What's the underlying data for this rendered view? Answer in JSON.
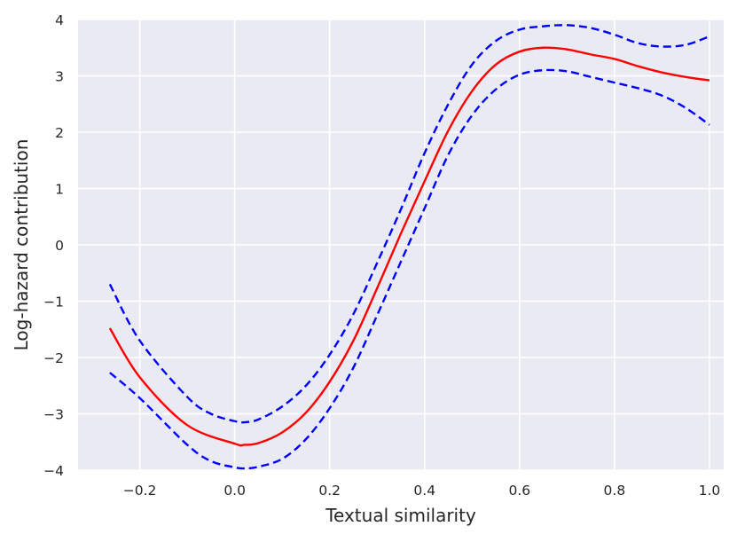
{
  "chart_data": {
    "type": "line",
    "xlabel": "Textual similarity",
    "ylabel": "Log-hazard contribution",
    "xlim": [
      -0.33,
      1.03
    ],
    "ylim": [
      -4,
      4
    ],
    "x_ticks": [
      -0.2,
      0.0,
      0.2,
      0.4,
      0.6,
      0.8,
      1.0
    ],
    "x_tick_labels": [
      "−0.2",
      "0.0",
      "0.2",
      "0.4",
      "0.6",
      "0.8",
      "1.0"
    ],
    "y_ticks": [
      -4,
      -3,
      -2,
      -1,
      0,
      1,
      2,
      3,
      4
    ],
    "y_tick_labels": [
      "−4",
      "−3",
      "−2",
      "−1",
      "0",
      "1",
      "2",
      "3",
      "4"
    ],
    "grid": true,
    "legend": "none",
    "colors": {
      "background": "#eaeaf2",
      "grid": "#ffffff",
      "estimate": "#ff0000",
      "bounds": "#0000ff"
    },
    "series": [
      {
        "role": "estimate",
        "style": "solid",
        "color": "#ff0000",
        "points": [
          [
            -0.263,
            -1.48
          ],
          [
            -0.2,
            -2.35
          ],
          [
            -0.1,
            -3.2
          ],
          [
            0.0,
            -3.53
          ],
          [
            0.02,
            -3.55
          ],
          [
            0.05,
            -3.52
          ],
          [
            0.1,
            -3.33
          ],
          [
            0.15,
            -2.98
          ],
          [
            0.2,
            -2.43
          ],
          [
            0.25,
            -1.7
          ],
          [
            0.3,
            -0.77
          ],
          [
            0.35,
            0.2
          ],
          [
            0.4,
            1.13
          ],
          [
            0.45,
            2.03
          ],
          [
            0.5,
            2.73
          ],
          [
            0.55,
            3.2
          ],
          [
            0.6,
            3.43
          ],
          [
            0.65,
            3.5
          ],
          [
            0.7,
            3.47
          ],
          [
            0.75,
            3.38
          ],
          [
            0.8,
            3.3
          ],
          [
            0.85,
            3.17
          ],
          [
            0.9,
            3.06
          ],
          [
            0.95,
            2.98
          ],
          [
            1.0,
            2.92
          ]
        ]
      },
      {
        "role": "upper_bound",
        "style": "dashed",
        "color": "#0000ff",
        "points": [
          [
            -0.263,
            -0.7
          ],
          [
            -0.2,
            -1.7
          ],
          [
            -0.1,
            -2.7
          ],
          [
            -0.05,
            -3.0
          ],
          [
            0.0,
            -3.13
          ],
          [
            0.02,
            -3.15
          ],
          [
            0.05,
            -3.1
          ],
          [
            0.1,
            -2.87
          ],
          [
            0.15,
            -2.5
          ],
          [
            0.2,
            -1.95
          ],
          [
            0.25,
            -1.23
          ],
          [
            0.3,
            -0.32
          ],
          [
            0.35,
            0.63
          ],
          [
            0.4,
            1.63
          ],
          [
            0.45,
            2.5
          ],
          [
            0.5,
            3.2
          ],
          [
            0.55,
            3.62
          ],
          [
            0.6,
            3.82
          ],
          [
            0.65,
            3.88
          ],
          [
            0.7,
            3.9
          ],
          [
            0.75,
            3.85
          ],
          [
            0.8,
            3.73
          ],
          [
            0.85,
            3.58
          ],
          [
            0.9,
            3.52
          ],
          [
            0.95,
            3.55
          ],
          [
            1.0,
            3.7
          ]
        ]
      },
      {
        "role": "lower_bound",
        "style": "dashed",
        "color": "#0000ff",
        "points": [
          [
            -0.263,
            -2.27
          ],
          [
            -0.2,
            -2.72
          ],
          [
            -0.1,
            -3.55
          ],
          [
            -0.05,
            -3.84
          ],
          [
            0.0,
            -3.95
          ],
          [
            0.02,
            -3.97
          ],
          [
            0.05,
            -3.94
          ],
          [
            0.1,
            -3.8
          ],
          [
            0.15,
            -3.45
          ],
          [
            0.2,
            -2.9
          ],
          [
            0.25,
            -2.18
          ],
          [
            0.3,
            -1.25
          ],
          [
            0.35,
            -0.3
          ],
          [
            0.4,
            0.65
          ],
          [
            0.45,
            1.6
          ],
          [
            0.5,
            2.3
          ],
          [
            0.55,
            2.76
          ],
          [
            0.6,
            3.02
          ],
          [
            0.65,
            3.1
          ],
          [
            0.7,
            3.08
          ],
          [
            0.75,
            2.98
          ],
          [
            0.8,
            2.88
          ],
          [
            0.85,
            2.78
          ],
          [
            0.9,
            2.65
          ],
          [
            0.95,
            2.43
          ],
          [
            1.0,
            2.13
          ]
        ]
      }
    ]
  }
}
